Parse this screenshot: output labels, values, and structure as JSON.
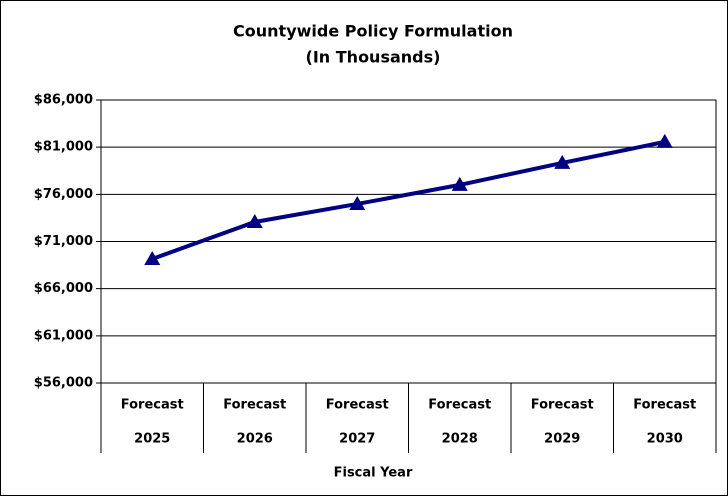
{
  "chart_data": {
    "type": "line",
    "title": [
      "Countywide Policy Formulation",
      "(In Thousands)"
    ],
    "x_label": "Fiscal Year",
    "categories": [
      [
        "Forecast",
        "2025"
      ],
      [
        "Forecast",
        "2026"
      ],
      [
        "Forecast",
        "2027"
      ],
      [
        "Forecast",
        "2028"
      ],
      [
        "Forecast",
        "2029"
      ],
      [
        "Forecast",
        "2030"
      ]
    ],
    "values": [
      69150,
      73070,
      74980,
      77000,
      79330,
      81560
    ],
    "color": "#000080",
    "ylim": [
      56000,
      86000
    ],
    "yticks": [
      {
        "value": 56000,
        "label": "$56,000"
      },
      {
        "value": 61000,
        "label": "$61,000"
      },
      {
        "value": 66000,
        "label": "$66,000"
      },
      {
        "value": 71000,
        "label": "$71,000"
      },
      {
        "value": 76000,
        "label": "$76,000"
      },
      {
        "value": 81000,
        "label": "$81,000"
      },
      {
        "value": 86000,
        "label": "$86,000"
      }
    ],
    "grid": true
  }
}
